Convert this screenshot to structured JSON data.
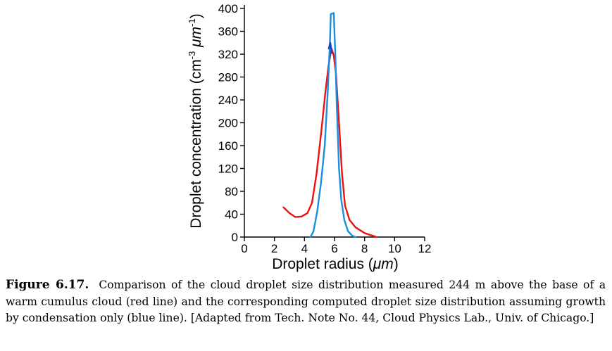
{
  "chart_data": {
    "type": "line",
    "xlabel_pre": "Droplet radius (",
    "xlabel_unit": "μm",
    "xlabel_post": ")",
    "ylabel_pre": "Droplet concentration (cm",
    "ylabel_sup1": "-3",
    "ylabel_mid": " μm",
    "ylabel_sup2": "-1",
    "ylabel_post": ")",
    "xlim": [
      0,
      12
    ],
    "ylim": [
      0,
      400
    ],
    "xticks": [
      0,
      2,
      4,
      6,
      8,
      10,
      12
    ],
    "yticks": [
      0,
      40,
      80,
      120,
      160,
      200,
      240,
      280,
      320,
      360,
      400
    ],
    "series": [
      {
        "color": "#ee1111",
        "points": [
          [
            2.6,
            52
          ],
          [
            3.0,
            42
          ],
          [
            3.4,
            35
          ],
          [
            3.8,
            36
          ],
          [
            4.2,
            42
          ],
          [
            4.5,
            60
          ],
          [
            4.8,
            110
          ],
          [
            5.1,
            180
          ],
          [
            5.4,
            255
          ],
          [
            5.6,
            300
          ],
          [
            5.8,
            330
          ],
          [
            5.95,
            318
          ],
          [
            6.1,
            285
          ],
          [
            6.3,
            200
          ],
          [
            6.5,
            110
          ],
          [
            6.7,
            55
          ],
          [
            7.0,
            30
          ],
          [
            7.4,
            17
          ],
          [
            8.0,
            7
          ],
          [
            8.8,
            0
          ]
        ]
      },
      {
        "color": "#1a8ee0",
        "points": [
          [
            4.4,
            0
          ],
          [
            4.6,
            10
          ],
          [
            4.85,
            45
          ],
          [
            5.1,
            95
          ],
          [
            5.35,
            160
          ],
          [
            5.55,
            255
          ],
          [
            5.7,
            345
          ],
          [
            5.75,
            390
          ],
          [
            5.95,
            392
          ],
          [
            6.05,
            320
          ],
          [
            6.15,
            230
          ],
          [
            6.3,
            120
          ],
          [
            6.45,
            65
          ],
          [
            6.65,
            30
          ],
          [
            6.9,
            10
          ],
          [
            7.2,
            2
          ],
          [
            7.4,
            0
          ]
        ]
      },
      {
        "color": "#1a3fcc",
        "points": [
          [
            5.62,
            330
          ],
          [
            5.72,
            340
          ],
          [
            5.82,
            322
          ]
        ]
      }
    ]
  },
  "caption": {
    "label": "Figure 6.17.",
    "text": "Comparison of the cloud droplet size distribution measured 244 m above the base of a warm cumulus cloud (red line) and the corresponding computed droplet size distribution assuming growth by condensation only (blue line). [Adapted from Tech. Note No. 44, Cloud Physics Lab., Univ. of Chicago.]"
  }
}
